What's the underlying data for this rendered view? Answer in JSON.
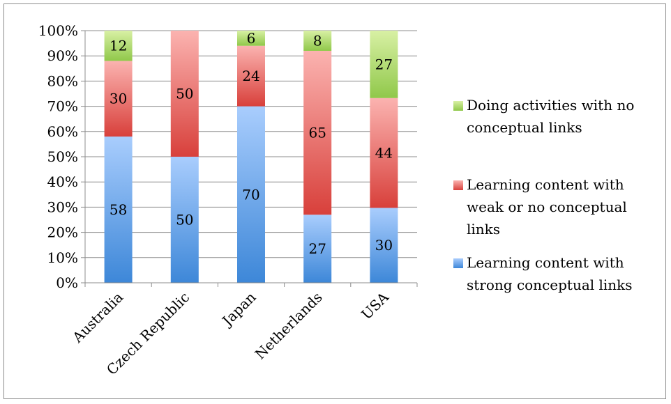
{
  "chart_data": {
    "type": "bar",
    "stacked": true,
    "percent_stacked": true,
    "categories": [
      "Australia",
      "Czech Republic",
      "Japan",
      "Netherlands",
      "USA"
    ],
    "series": [
      {
        "name": "Learning content with strong conceptual links",
        "values": [
          58,
          50,
          70,
          27,
          30
        ],
        "color_top": "#a9cdfd",
        "color_bottom": "#3d87d8"
      },
      {
        "name": "Learning content with weak or no conceptual links",
        "values": [
          30,
          50,
          24,
          65,
          44
        ],
        "color_top": "#fbb3b0",
        "color_bottom": "#d8403b"
      },
      {
        "name": "Doing activities with no conceptual links",
        "values": [
          12,
          0,
          6,
          8,
          27
        ],
        "color_top": "#d8f0a4",
        "color_bottom": "#90c84a"
      }
    ],
    "ylim": [
      0,
      100
    ],
    "yticks": [
      "0%",
      "10%",
      "20%",
      "30%",
      "40%",
      "50%",
      "60%",
      "70%",
      "80%",
      "90%",
      "100%"
    ],
    "grid": true,
    "legend_position": "right",
    "legend": [
      {
        "lines": [
          "Doing activities with no",
          "conceptual links"
        ]
      },
      {
        "lines": [
          "Learning content with",
          "weak or no conceptual",
          "links"
        ]
      },
      {
        "lines": [
          "Learning content with",
          "strong conceptual links"
        ]
      }
    ]
  }
}
